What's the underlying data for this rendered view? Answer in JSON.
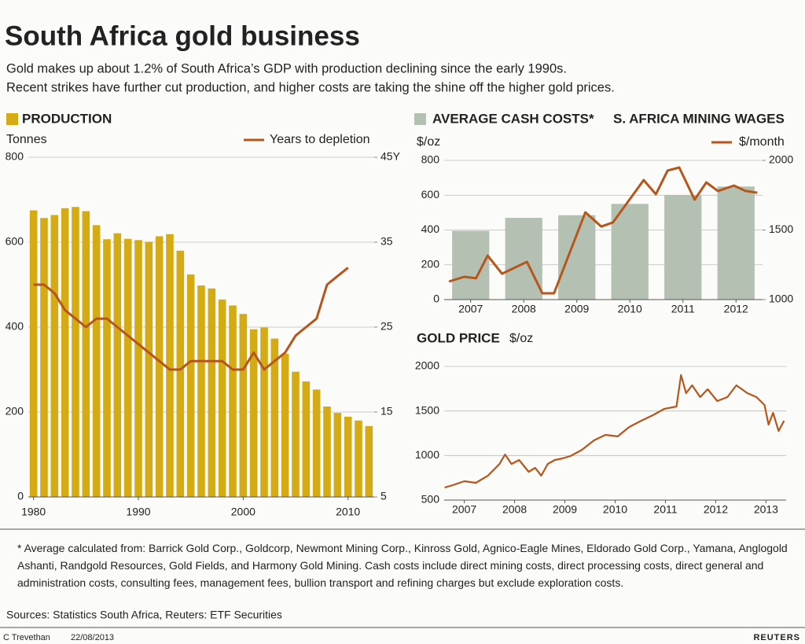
{
  "title": "South Africa gold business",
  "subtitle": [
    "Gold makes up about 1.2% of South Africa’s GDP with production declining since the early 1990s.",
    "Recent strikes have further cut production, and higher costs are taking the shine off the higher gold prices."
  ],
  "chart_data": [
    {
      "type": "bar",
      "y_label": "Tonnes",
      "x": [
        1980,
        1981,
        1982,
        1983,
        1984,
        1985,
        1986,
        1987,
        1988,
        1989,
        1990,
        1991,
        1992,
        1993,
        1994,
        1995,
        1996,
        1997,
        1998,
        1999,
        2000,
        2001,
        2002,
        2003,
        2004,
        2005,
        2006,
        2007,
        2008,
        2009,
        2010,
        2011,
        2012
      ],
      "xlim": [
        1979.5,
        2012.5
      ],
      "xticks": [
        1980,
        1990,
        2000,
        2010
      ],
      "ylim": [
        0,
        800
      ],
      "yticks": [
        0,
        200,
        400,
        600,
        800
      ],
      "y2lim": [
        5,
        45
      ],
      "y2ticks": [
        5,
        15,
        25,
        35,
        {
          "value": 45,
          "label": "45Y"
        }
      ],
      "grid": true,
      "series": [
        {
          "name": "PRODUCTION",
          "type": "bar",
          "color": "#d4ab14",
          "values": [
            675,
            657,
            664,
            680,
            683,
            673,
            640,
            607,
            621,
            608,
            605,
            601,
            614,
            619,
            580,
            524,
            498,
            491,
            465,
            451,
            431,
            395,
            399,
            373,
            337,
            295,
            272,
            253,
            213,
            198,
            189,
            180,
            167
          ]
        },
        {
          "name": "Years to depletion",
          "type": "line",
          "axis": "y2",
          "color": "#b5571c",
          "values": [
            30,
            30,
            29,
            27,
            26,
            25,
            26,
            26,
            25,
            24,
            23,
            22,
            21,
            20,
            20,
            21,
            21,
            21,
            21,
            20,
            20,
            22,
            20,
            21,
            22,
            24,
            25,
            26,
            30,
            31,
            32,
            null,
            null
          ]
        }
      ]
    },
    {
      "type": "bar",
      "y_label": "$/oz",
      "y2_label": "$/month",
      "xlim": [
        2006.5,
        2012.5
      ],
      "xticks": [
        2007,
        2008,
        2009,
        2010,
        2011,
        2012
      ],
      "ylim": [
        0,
        800
      ],
      "yticks": [
        0,
        200,
        400,
        600,
        800
      ],
      "y2lim": [
        1000,
        2000
      ],
      "y2ticks": [
        1000,
        1500,
        2000
      ],
      "grid": true,
      "series": [
        {
          "name": "AVERAGE CASH COSTS*",
          "type": "bar",
          "color": "#b4c0b1",
          "x": [
            2007,
            2008,
            2009,
            2010,
            2011,
            2012
          ],
          "values": [
            395,
            470,
            485,
            550,
            600,
            650
          ]
        },
        {
          "name": "S. AFRICA MINING WAGES",
          "type": "line",
          "axis": "y2",
          "color": "#b5571c",
          "x": [
            2006.59,
            2006.88,
            2007.1,
            2007.32,
            2007.59,
            2008.06,
            2008.35,
            2008.57,
            2009.16,
            2009.46,
            2009.68,
            2010.26,
            2010.49,
            2010.71,
            2010.93,
            2011.22,
            2011.44,
            2011.66,
            2011.96,
            2012.18,
            2012.4
          ],
          "values": [
            1130,
            1164,
            1153,
            1316,
            1186,
            1271,
            1045,
            1045,
            1627,
            1525,
            1554,
            1859,
            1757,
            1927,
            1949,
            1718,
            1842,
            1780,
            1819,
            1780,
            1768
          ]
        }
      ]
    },
    {
      "type": "line",
      "title": "GOLD PRICE",
      "y_label": "$/oz",
      "color": "#b5571c",
      "xlim": [
        2006.6,
        2013.4
      ],
      "xticks": [
        2007,
        2008,
        2009,
        2010,
        2011,
        2012,
        2013
      ],
      "ylim": [
        500,
        2000
      ],
      "yticks": [
        500,
        1000,
        1500,
        2000
      ],
      "grid": true,
      "x": [
        2006.61,
        2006.77,
        2007.0,
        2007.23,
        2007.47,
        2007.7,
        2007.81,
        2007.94,
        2008.09,
        2008.28,
        2008.41,
        2008.53,
        2008.66,
        2008.8,
        2008.95,
        2009.11,
        2009.34,
        2009.58,
        2009.81,
        2010.05,
        2010.28,
        2010.52,
        2010.75,
        2010.98,
        2011.22,
        2011.31,
        2011.41,
        2011.53,
        2011.69,
        2011.84,
        2012.03,
        2012.23,
        2012.41,
        2012.63,
        2012.81,
        2012.97,
        2013.05,
        2013.14,
        2013.25,
        2013.36
      ],
      "values": [
        641,
        668,
        712,
        694,
        774,
        906,
        1012,
        906,
        950,
        818,
        862,
        774,
        906,
        950,
        968,
        994,
        1065,
        1171,
        1232,
        1215,
        1321,
        1391,
        1453,
        1524,
        1550,
        1903,
        1700,
        1788,
        1656,
        1744,
        1612,
        1656,
        1788,
        1700,
        1656,
        1568,
        1347,
        1479,
        1276,
        1391
      ]
    }
  ],
  "footnote": "* Average calculated from: Barrick Gold Corp., Goldcorp, Newmont Mining Corp., Kinross Gold, Agnico-Eagle Mines, Eldorado Gold Corp., Yamana, Anglogold Ashanti, Randgold Resources, Gold Fields, and Harmony Gold Mining. Cash costs include direct mining costs, direct processing costs, direct general and administration costs, consulting fees, management fees, bullion transport and refining charges but exclude exploration costs.",
  "source": "Sources: Statistics South Africa, Reuters: ETF Securities",
  "author": "C Trevethan",
  "date": "22/08/2013",
  "logo": "REUTERS"
}
